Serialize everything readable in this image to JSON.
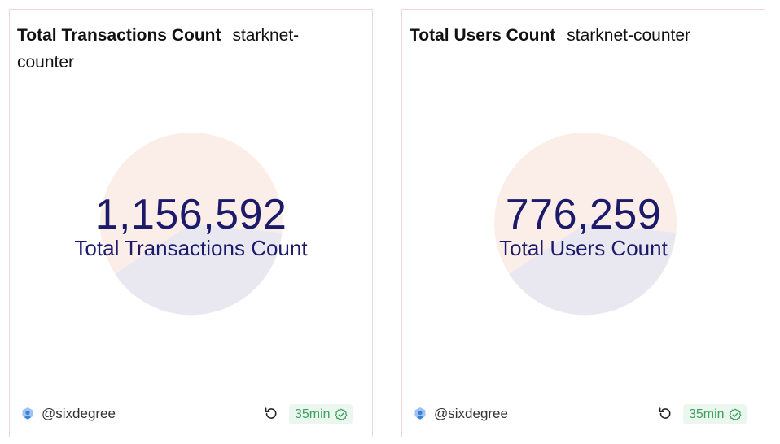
{
  "cards": [
    {
      "title": "Total Transactions Count",
      "subtitle": "starknet-counter",
      "value": "1,156,592",
      "label": "Total Transactions Count",
      "author": "@sixdegree",
      "freshness": "35min",
      "author_icon": "user-avatar-icon",
      "refresh_icon": "refresh-icon",
      "badge_icon": "check-circle-icon"
    },
    {
      "title": "Total Users Count",
      "subtitle": "starknet-counter",
      "value": "776,259",
      "label": "Total Users Count",
      "author": "@sixdegree",
      "freshness": "35min",
      "author_icon": "user-avatar-icon",
      "refresh_icon": "refresh-icon",
      "badge_icon": "check-circle-icon"
    }
  ],
  "colors": {
    "metric_text": "#1c1a6b",
    "circle_top": "#fbeee8",
    "circle_bottom": "#e9e8f1",
    "badge_bg": "#eaf6ee",
    "badge_text": "#3aa25e",
    "card_border": "#efd6d2"
  }
}
